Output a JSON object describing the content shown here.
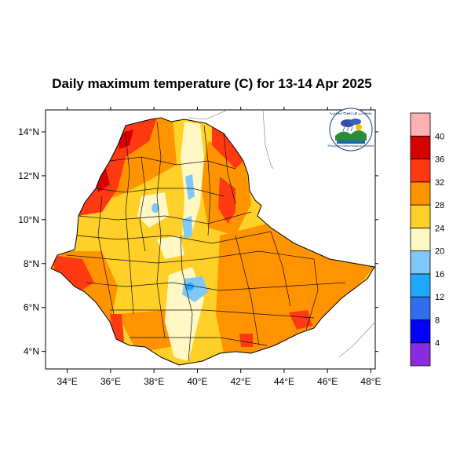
{
  "title": "Daily maximum temperature (C) for 13-14 Apr 2025",
  "axes": {
    "lon_range": [
      33,
      48.2
    ],
    "lat_range": [
      3.2,
      15
    ],
    "x_ticks": [
      {
        "value": 34,
        "label": "34°E"
      },
      {
        "value": 36,
        "label": "36°E"
      },
      {
        "value": 38,
        "label": "38°E"
      },
      {
        "value": 40,
        "label": "40°E"
      },
      {
        "value": 42,
        "label": "42°E"
      },
      {
        "value": 44,
        "label": "44°E"
      },
      {
        "value": 46,
        "label": "46°E"
      },
      {
        "value": 48,
        "label": "48°E"
      }
    ],
    "y_ticks": [
      {
        "value": 4,
        "label": "4°N"
      },
      {
        "value": 6,
        "label": "6°N"
      },
      {
        "value": 8,
        "label": "8°N"
      },
      {
        "value": 10,
        "label": "10°N"
      },
      {
        "value": 12,
        "label": "12°N"
      },
      {
        "value": 14,
        "label": "14°N"
      }
    ]
  },
  "colorbar": {
    "colors": [
      "#8a2be2",
      "#0000ff",
      "#2f6fef",
      "#1ea8ff",
      "#7fc8f8",
      "#fff8c4",
      "#ffd027",
      "#ff9400",
      "#ff3a12",
      "#d70000",
      "#ffb0b4"
    ],
    "labels": [
      "4",
      "8",
      "12",
      "16",
      "20",
      "24",
      "28",
      "32",
      "36",
      "40"
    ]
  },
  "colors": {
    "land_base": "#ffd027",
    "hot": "#ff9400",
    "very_hot": "#ff3a12",
    "extreme": "#d70000",
    "mild": "#fff8c4",
    "cool": "#7fc8f8",
    "cold": "#1ea8ff",
    "outline": "#000000",
    "neighbor_border": "#999999"
  },
  "logo": {
    "agency": "Ethiopian Meteorological Institute",
    "seal_text": "የኢትዮጵያ ሜቲዎሮሎጂ ኢንስቲትዩት"
  }
}
